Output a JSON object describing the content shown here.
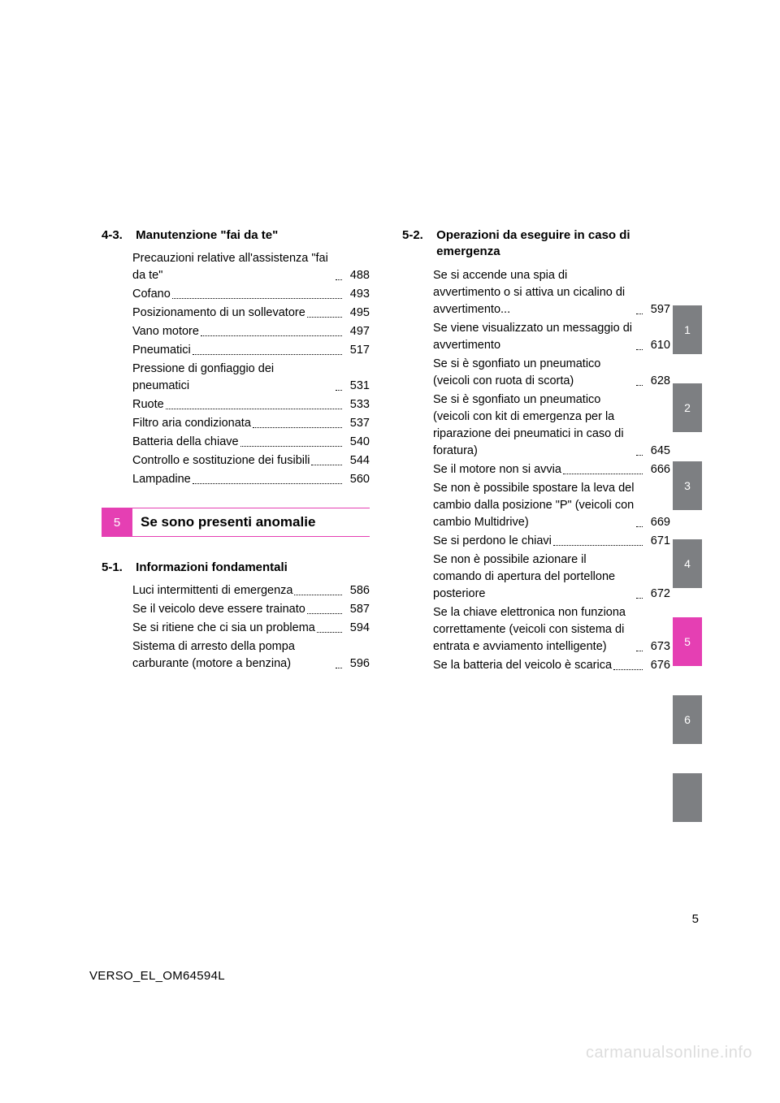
{
  "colors": {
    "chapter5": "#e53fb3",
    "chapter5_rule": "#e53fb3",
    "tab_gray": "#7d7f82",
    "tab_active": "#e53fb3",
    "watermark": "#dddddd",
    "text": "#000000",
    "bg": "#ffffff"
  },
  "left": {
    "s43": {
      "num": "4-3.",
      "title": "Manutenzione \"fai da te\"",
      "items": [
        {
          "label": "Precauzioni relative all'assistenza \"fai da te\"",
          "page": "488"
        },
        {
          "label": "Cofano",
          "page": "493"
        },
        {
          "label": "Posizionamento di un sollevatore",
          "page": "495"
        },
        {
          "label": "Vano motore",
          "page": "497"
        },
        {
          "label": "Pneumatici",
          "page": "517"
        },
        {
          "label": "Pressione di gonfiaggio dei pneumatici",
          "page": "531"
        },
        {
          "label": "Ruote",
          "page": "533"
        },
        {
          "label": "Filtro aria condizionata",
          "page": "537"
        },
        {
          "label": "Batteria della chiave",
          "page": "540"
        },
        {
          "label": "Controllo e sostituzione dei fusibili",
          "page": "544"
        },
        {
          "label": "Lampadine",
          "page": "560"
        }
      ]
    },
    "chapter5": {
      "tab": "5",
      "title": "Se sono presenti anomalie"
    },
    "s51": {
      "num": "5-1.",
      "title": "Informazioni fondamentali",
      "items": [
        {
          "label": "Luci intermittenti di emergenza",
          "page": "586"
        },
        {
          "label": "Se il veicolo deve essere trainato",
          "page": "587"
        },
        {
          "label": "Se si ritiene che ci sia un problema",
          "page": "594"
        },
        {
          "label": "Sistema di arresto della pompa carburante (motore a benzina)",
          "page": "596"
        }
      ]
    }
  },
  "right": {
    "s52": {
      "num": "5-2.",
      "title": "Operazioni da eseguire in caso di emergenza",
      "items": [
        {
          "label": "Se si accende una spia di avvertimento o si attiva un cicalino di avvertimento...",
          "page": "597"
        },
        {
          "label": "Se viene visualizzato un messaggio di avvertimento",
          "page": "610"
        },
        {
          "label": "Se si è sgonfiato un pneumatico (veicoli con ruota di scorta)",
          "page": "628"
        },
        {
          "label": "Se si è sgonfiato un pneumatico (veicoli con kit di emergenza per la riparazione dei pneumatici in caso di foratura)",
          "page": "645"
        },
        {
          "label": "Se il motore non si avvia",
          "page": "666"
        },
        {
          "label": "Se non è possibile spostare la leva del cambio dalla posizione \"P\" (veicoli con cambio Multidrive)",
          "page": "669"
        },
        {
          "label": "Se si perdono le chiavi",
          "page": "671"
        },
        {
          "label": "Se non è possibile azionare il comando di apertura del portellone posteriore",
          "page": "672"
        },
        {
          "label": "Se la chiave elettronica non funziona correttamente (veicoli con sistema di entrata e avviamento intelligente)",
          "page": "673"
        },
        {
          "label": "Se la batteria del veicolo è scarica",
          "page": "676"
        }
      ]
    }
  },
  "side_tabs": [
    {
      "n": "1",
      "active": false
    },
    {
      "n": "2",
      "active": false
    },
    {
      "n": "3",
      "active": false
    },
    {
      "n": "4",
      "active": false
    },
    {
      "n": "5",
      "active": true
    },
    {
      "n": "6",
      "active": false
    },
    {
      "n": "",
      "active": false
    }
  ],
  "page_number": "5",
  "doc_code": "VERSO_EL_OM64594L",
  "watermark": "carmanualsonline.info"
}
